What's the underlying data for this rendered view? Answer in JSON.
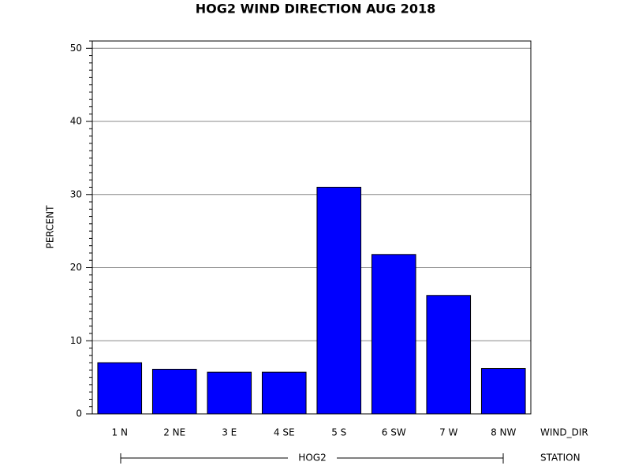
{
  "chart_data": {
    "type": "bar",
    "title": "HOG2 WIND DIRECTION AUG 2018",
    "y_label": "PERCENT",
    "x_label": "WIND_DIR",
    "group_label": "HOG2",
    "group_axis_label": "STATION",
    "categories": [
      "1 N",
      "2 NE",
      "3 E",
      "4 SE",
      "5 S",
      "6 SW",
      "7 W",
      "8 NW"
    ],
    "values": [
      7.0,
      6.1,
      5.7,
      5.7,
      31.0,
      21.8,
      16.2,
      6.2
    ],
    "color": "#0000ff",
    "ylim": [
      0,
      51
    ],
    "yticks": [
      0,
      10,
      20,
      30,
      40,
      50
    ],
    "yminorticks": [
      1,
      2,
      3,
      4,
      5,
      6,
      7,
      8,
      9,
      11,
      12,
      13,
      14,
      15,
      16,
      17,
      18,
      19,
      21,
      22,
      23,
      24,
      25,
      26,
      27,
      28,
      29,
      31,
      32,
      33,
      34,
      35,
      36,
      37,
      38,
      39,
      41,
      42,
      43,
      44,
      45,
      46,
      47,
      48,
      49,
      51
    ],
    "grid": true
  }
}
